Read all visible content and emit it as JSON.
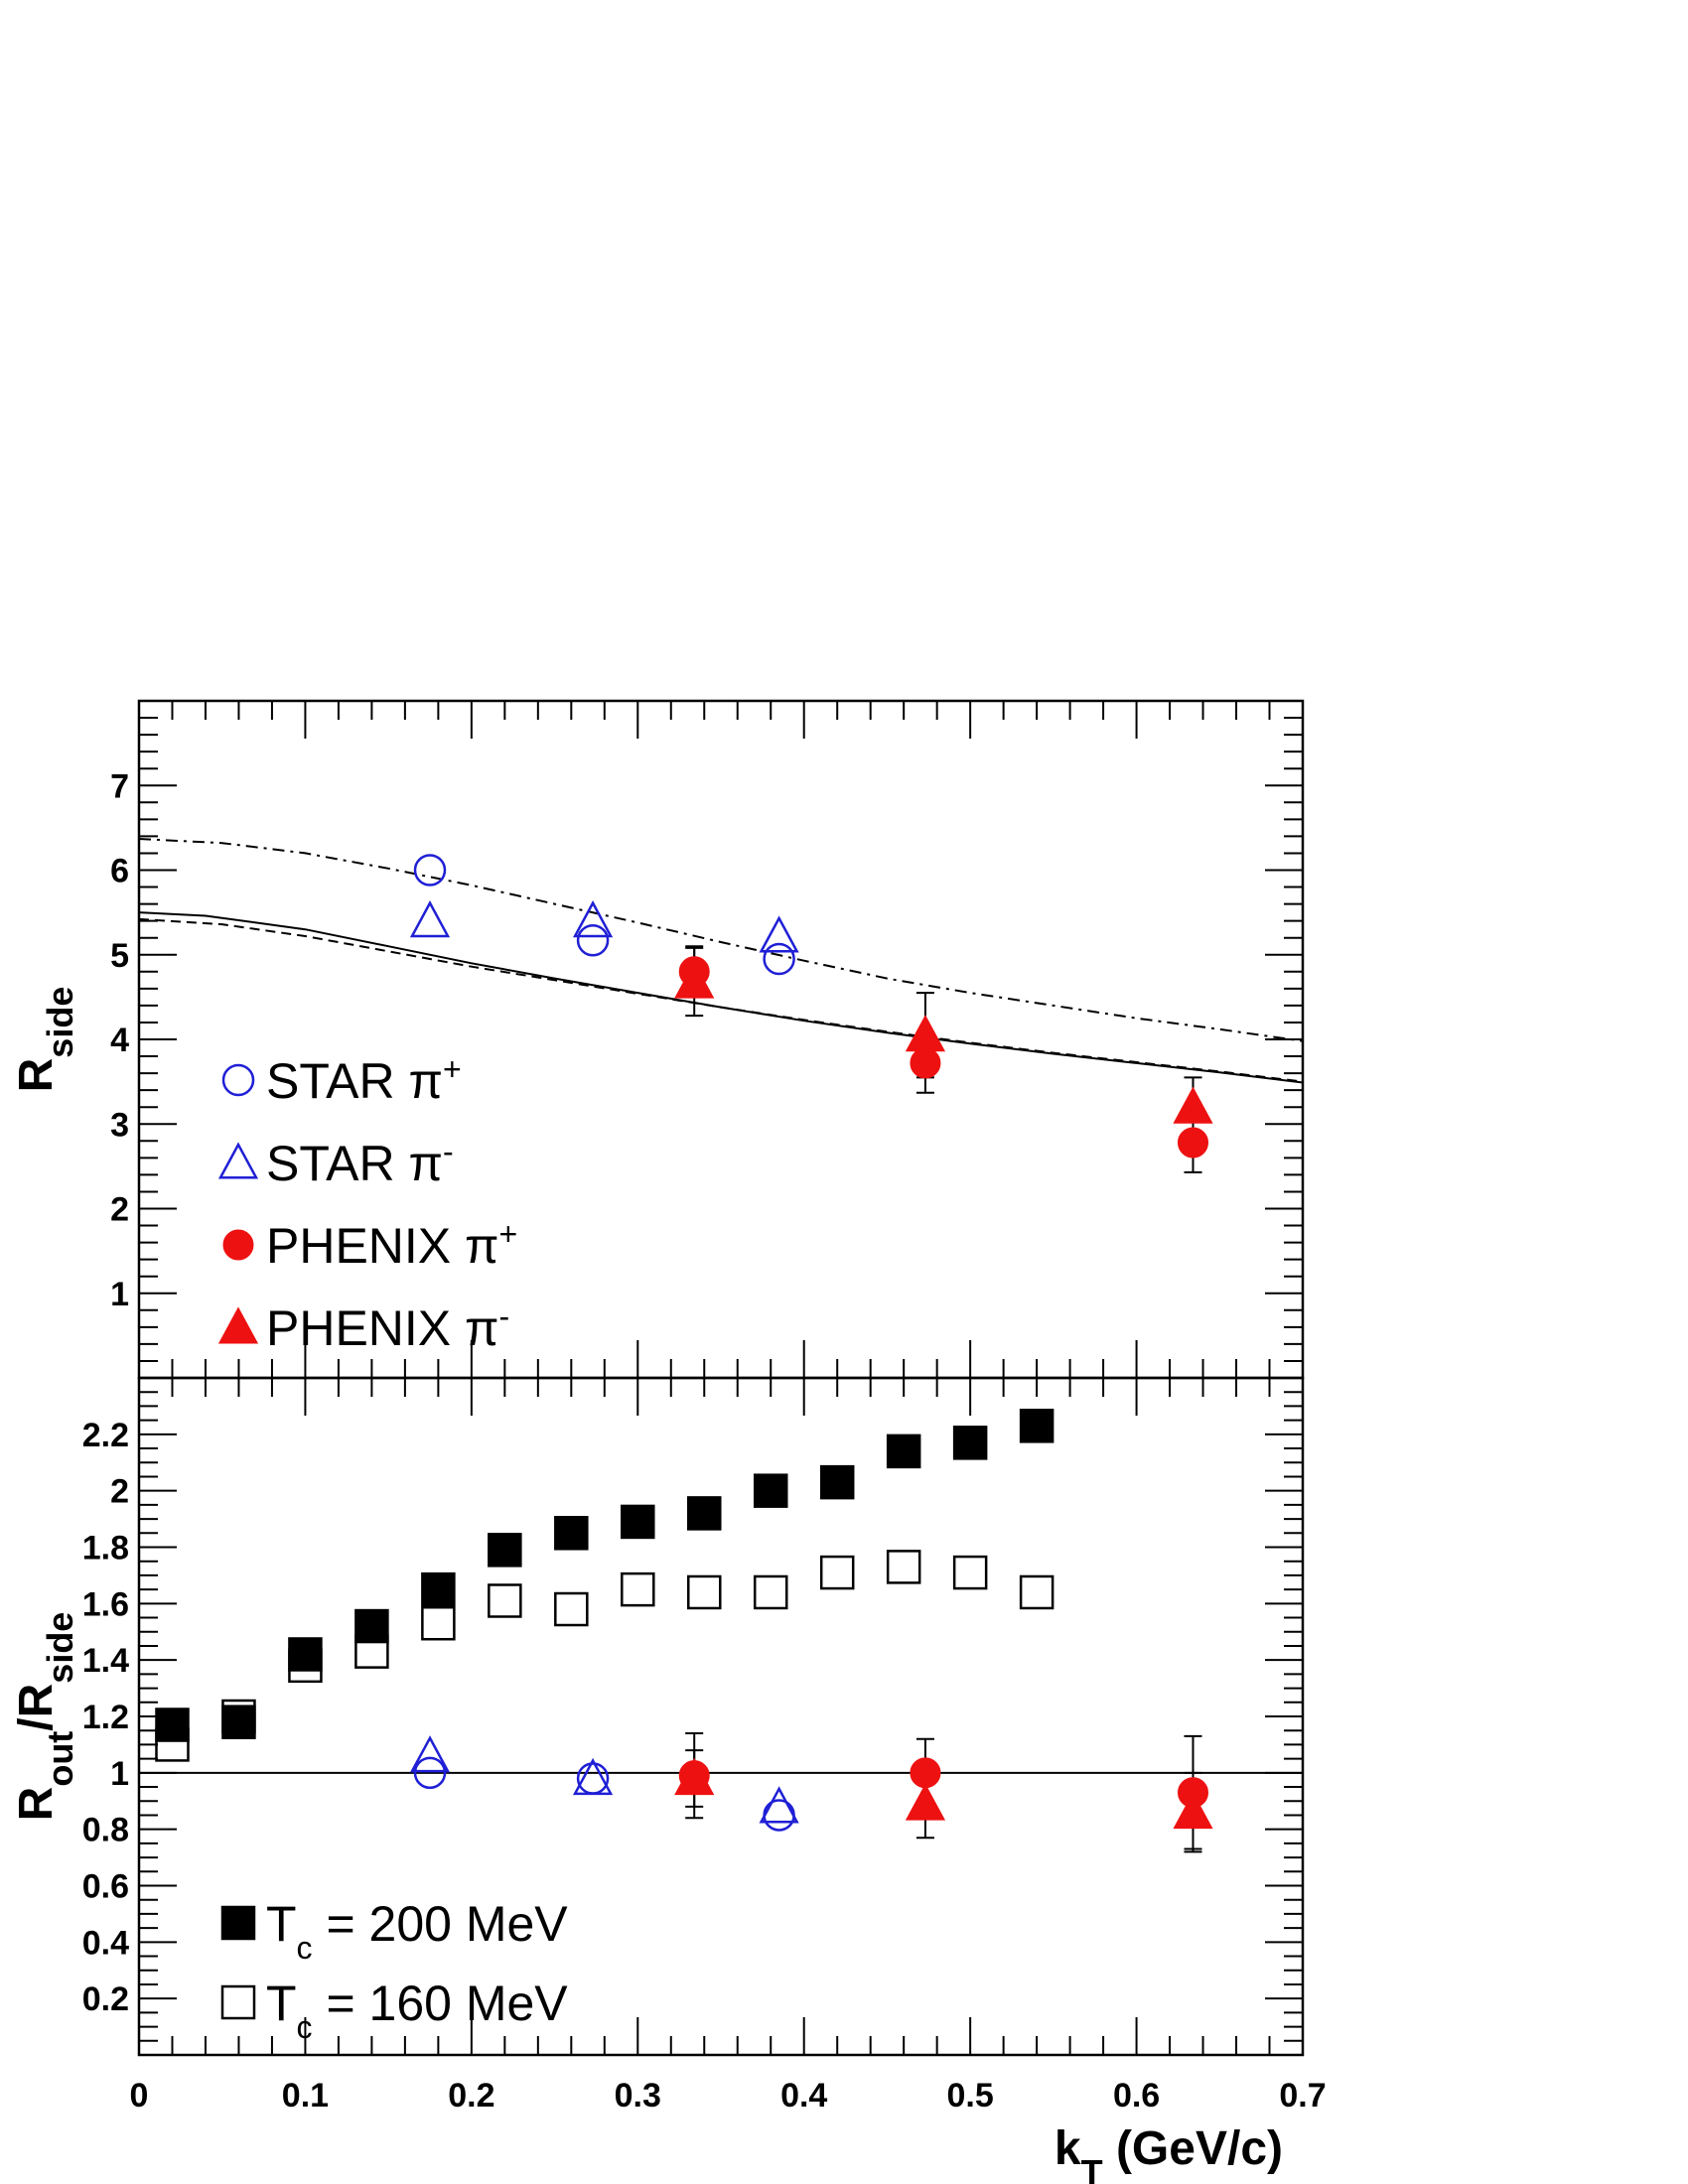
{
  "chart_data": [
    {
      "id": "top",
      "type": "scatter",
      "ylabel": "R",
      "ylabel_sub": "side",
      "xlim": [
        0,
        0.7
      ],
      "ylim": [
        0,
        8
      ],
      "x_ticks": [
        0,
        0.1,
        0.2,
        0.3,
        0.4,
        0.5,
        0.6,
        0.7
      ],
      "y_ticks": [
        1,
        2,
        3,
        4,
        5,
        6,
        7
      ],
      "y_tick_labels": [
        "1",
        "2",
        "3",
        "4",
        "5",
        "6",
        "7"
      ],
      "legend_placement": "lower-left",
      "series": [
        {
          "name": "STAR π",
          "sup": "+",
          "marker": "open-circle",
          "color": "#1f1fd6",
          "points": [
            {
              "x": 0.175,
              "y": 6.0
            },
            {
              "x": 0.273,
              "y": 5.17
            },
            {
              "x": 0.385,
              "y": 4.95
            }
          ]
        },
        {
          "name": "STAR π",
          "sup": "-",
          "marker": "open-triangle",
          "color": "#1f1fd6",
          "points": [
            {
              "x": 0.175,
              "y": 5.4
            },
            {
              "x": 0.273,
              "y": 5.4
            },
            {
              "x": 0.385,
              "y": 5.22
            }
          ]
        },
        {
          "name": "PHENIX π",
          "sup": "+",
          "marker": "filled-circle",
          "color": "#ee1111",
          "points": [
            {
              "x": 0.334,
              "y": 4.8,
              "err": 0.3
            },
            {
              "x": 0.473,
              "y": 3.72,
              "err": 0.35
            },
            {
              "x": 0.634,
              "y": 2.78,
              "err": 0.35
            }
          ]
        },
        {
          "name": "PHENIX π",
          "sup": "-",
          "marker": "filled-triangle",
          "color": "#ee1111",
          "points": [
            {
              "x": 0.334,
              "y": 4.68,
              "err": 0.4
            },
            {
              "x": 0.473,
              "y": 4.05,
              "err": 0.5
            },
            {
              "x": 0.634,
              "y": 3.2,
              "err": 0.35
            }
          ]
        }
      ],
      "curves": [
        {
          "style": "solid",
          "points": [
            [
              0,
              5.5
            ],
            [
              0.04,
              5.46
            ],
            [
              0.1,
              5.3
            ],
            [
              0.15,
              5.1
            ],
            [
              0.2,
              4.9
            ],
            [
              0.25,
              4.72
            ],
            [
              0.3,
              4.55
            ],
            [
              0.35,
              4.38
            ],
            [
              0.4,
              4.22
            ],
            [
              0.45,
              4.08
            ],
            [
              0.5,
              3.95
            ],
            [
              0.55,
              3.83
            ],
            [
              0.6,
              3.72
            ],
            [
              0.65,
              3.61
            ],
            [
              0.7,
              3.49
            ]
          ]
        },
        {
          "style": "dashed",
          "points": [
            [
              0,
              5.42
            ],
            [
              0.05,
              5.36
            ],
            [
              0.1,
              5.22
            ],
            [
              0.15,
              5.04
            ],
            [
              0.2,
              4.86
            ],
            [
              0.25,
              4.7
            ],
            [
              0.3,
              4.54
            ],
            [
              0.35,
              4.38
            ],
            [
              0.4,
              4.23
            ],
            [
              0.45,
              4.09
            ],
            [
              0.5,
              3.96
            ],
            [
              0.55,
              3.84
            ],
            [
              0.6,
              3.73
            ],
            [
              0.65,
              3.62
            ],
            [
              0.7,
              3.5
            ]
          ]
        },
        {
          "style": "dashdot",
          "points": [
            [
              0,
              6.37
            ],
            [
              0.05,
              6.32
            ],
            [
              0.1,
              6.2
            ],
            [
              0.15,
              6.02
            ],
            [
              0.2,
              5.82
            ],
            [
              0.25,
              5.6
            ],
            [
              0.3,
              5.38
            ],
            [
              0.35,
              5.15
            ],
            [
              0.4,
              4.93
            ],
            [
              0.45,
              4.72
            ],
            [
              0.5,
              4.55
            ],
            [
              0.55,
              4.4
            ],
            [
              0.6,
              4.25
            ],
            [
              0.65,
              4.12
            ],
            [
              0.7,
              3.98
            ]
          ]
        }
      ]
    },
    {
      "id": "bottom",
      "type": "scatter",
      "ylabel": "R",
      "ylabel_parts": [
        "out",
        "/R",
        "side"
      ],
      "xlabel": "k",
      "xlabel_sub": "T",
      "xlabel_rest": " (GeV/c)",
      "xlim": [
        0,
        0.7
      ],
      "ylim": [
        0,
        2.4
      ],
      "x_ticks": [
        0,
        0.1,
        0.2,
        0.3,
        0.4,
        0.5,
        0.6,
        0.7
      ],
      "x_tick_labels": [
        "0",
        "0.1",
        "0.2",
        "0.3",
        "0.4",
        "0.5",
        "0.6",
        "0.7"
      ],
      "y_ticks": [
        0.2,
        0.4,
        0.6,
        0.8,
        1.0,
        1.2,
        1.4,
        1.6,
        1.8,
        2.0,
        2.2
      ],
      "y_tick_labels": [
        "0.2",
        "0.4",
        "0.6",
        "0.8",
        "1",
        "1.2",
        "1.4",
        "1.6",
        "1.8",
        "2",
        "2.2"
      ],
      "reference_line": 1.0,
      "legend_placement": "lower-left",
      "series": [
        {
          "name": "T",
          "sub": "c",
          "rest": " = 200 MeV",
          "marker": "filled-square",
          "color": "#000000",
          "points": [
            {
              "x": 0.02,
              "y": 1.17
            },
            {
              "x": 0.06,
              "y": 1.18
            },
            {
              "x": 0.1,
              "y": 1.42
            },
            {
              "x": 0.14,
              "y": 1.52
            },
            {
              "x": 0.18,
              "y": 1.65
            },
            {
              "x": 0.22,
              "y": 1.79
            },
            {
              "x": 0.26,
              "y": 1.85
            },
            {
              "x": 0.3,
              "y": 1.89
            },
            {
              "x": 0.34,
              "y": 1.92
            },
            {
              "x": 0.38,
              "y": 2.0
            },
            {
              "x": 0.42,
              "y": 2.03
            },
            {
              "x": 0.46,
              "y": 2.14
            },
            {
              "x": 0.5,
              "y": 2.17
            },
            {
              "x": 0.54,
              "y": 2.23
            }
          ]
        },
        {
          "name": "T",
          "sub": "c",
          "rest": " = 160 MeV",
          "marker": "open-square",
          "color": "#000000",
          "points": [
            {
              "x": 0.02,
              "y": 1.1
            },
            {
              "x": 0.06,
              "y": 1.2
            },
            {
              "x": 0.1,
              "y": 1.38
            },
            {
              "x": 0.14,
              "y": 1.43
            },
            {
              "x": 0.18,
              "y": 1.53
            },
            {
              "x": 0.22,
              "y": 1.61
            },
            {
              "x": 0.26,
              "y": 1.58
            },
            {
              "x": 0.3,
              "y": 1.65
            },
            {
              "x": 0.34,
              "y": 1.64
            },
            {
              "x": 0.38,
              "y": 1.64
            },
            {
              "x": 0.42,
              "y": 1.71
            },
            {
              "x": 0.46,
              "y": 1.73
            },
            {
              "x": 0.5,
              "y": 1.71
            },
            {
              "x": 0.54,
              "y": 1.64
            }
          ]
        },
        {
          "marker": "open-circle",
          "color": "#1f1fd6",
          "points": [
            {
              "x": 0.175,
              "y": 1.0
            },
            {
              "x": 0.273,
              "y": 0.98
            },
            {
              "x": 0.385,
              "y": 0.85
            }
          ]
        },
        {
          "marker": "open-triangle",
          "color": "#1f1fd6",
          "points": [
            {
              "x": 0.175,
              "y": 1.06
            },
            {
              "x": 0.273,
              "y": 0.98
            },
            {
              "x": 0.385,
              "y": 0.88
            }
          ]
        },
        {
          "marker": "filled-circle",
          "color": "#ee1111",
          "points": [
            {
              "x": 0.334,
              "y": 0.99,
              "err": 0.15
            },
            {
              "x": 0.473,
              "y": 1.0,
              "err": 0.12
            },
            {
              "x": 0.634,
              "y": 0.93,
              "err": 0.2
            }
          ]
        },
        {
          "marker": "filled-triangle",
          "color": "#ee1111",
          "points": [
            {
              "x": 0.334,
              "y": 0.98,
              "err": 0.1
            },
            {
              "x": 0.473,
              "y": 0.89,
              "err": 0.12
            },
            {
              "x": 0.634,
              "y": 0.86,
              "err": 0.14
            }
          ]
        }
      ]
    }
  ]
}
